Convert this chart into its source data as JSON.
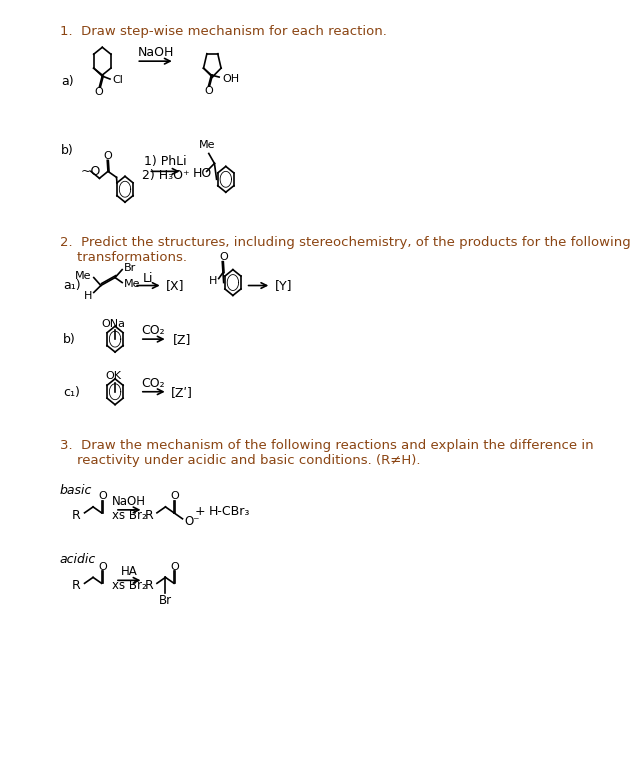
{
  "bg_color": "#ffffff",
  "text_color": "#000000",
  "brown_color": "#8B4513",
  "title1": "1.  Draw step-wise mechanism for each reaction.",
  "title2_1": "2.  Predict the structures, including stereochemistry, of the products for the following",
  "title2_2": "    transformations.",
  "title3_1": "3.  Draw the mechanism of the following reactions and explain the difference in",
  "title3_2": "    reactivity under acidic and basic conditions. (R≠H).",
  "basic_label": "basic",
  "acidic_label": "acidic"
}
